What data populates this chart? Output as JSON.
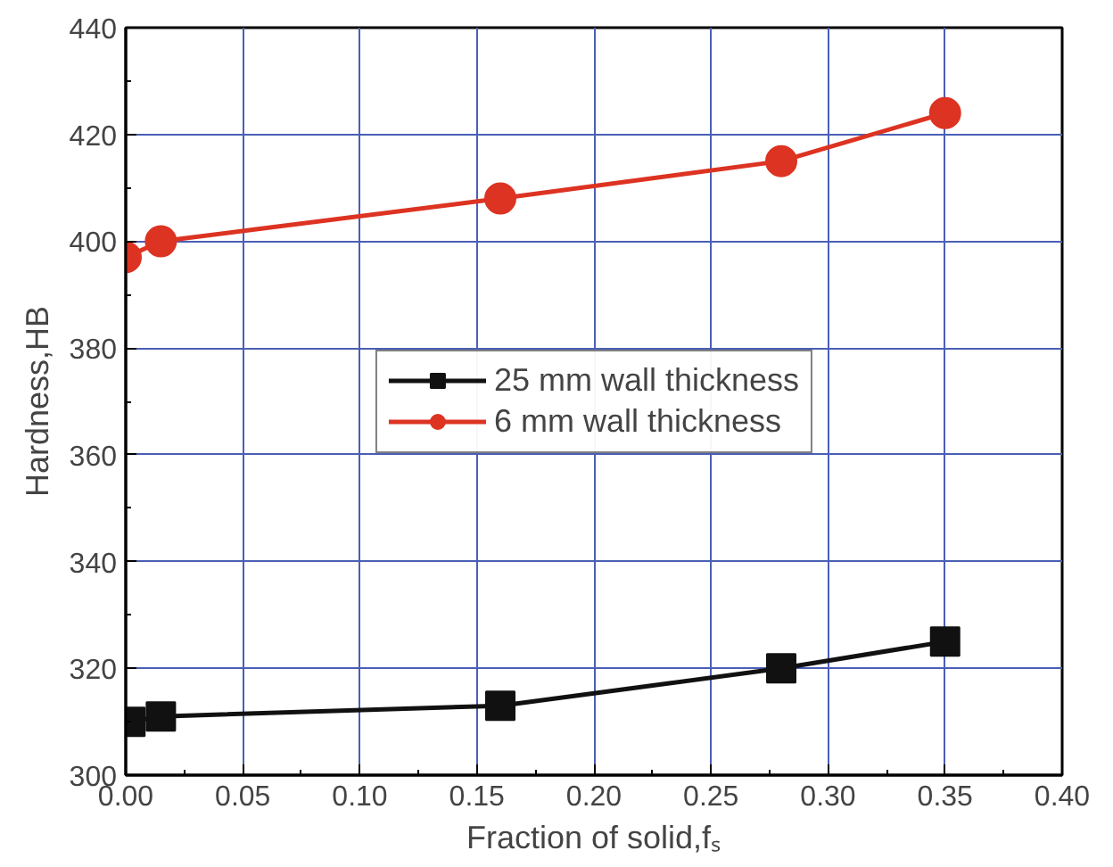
{
  "chart_data": {
    "type": "line",
    "xlabel": "Fraction of solid,fₛ",
    "ylabel": "Hardness,HB",
    "xlim": [
      0.0,
      0.4
    ],
    "xticks": [
      {
        "value": 0,
        "label": "0.00"
      },
      {
        "value": 0.05,
        "label": "0.05"
      },
      {
        "value": 0.1,
        "label": "0.10"
      },
      {
        "value": 0.15,
        "label": "0.15"
      },
      {
        "value": 0.2,
        "label": "0.20"
      },
      {
        "value": 0.25,
        "label": "0.25"
      },
      {
        "value": 0.3,
        "label": "0.30"
      },
      {
        "value": 0.35,
        "label": "0.35"
      },
      {
        "value": 0.4,
        "label": "0.40"
      }
    ],
    "ylim": [
      300,
      440
    ],
    "yticks": [
      300,
      320,
      340,
      360,
      380,
      400,
      420,
      440
    ],
    "grid": true,
    "legend": "center",
    "line_style": "solid",
    "series": [
      {
        "name": "25 mm wall thickness",
        "color": "#111111",
        "marker": "square",
        "x": [
          0.002,
          0.015,
          0.16,
          0.28,
          0.35
        ],
        "values": [
          310,
          311,
          313,
          320,
          325
        ]
      },
      {
        "name": "6 mm wall thickness",
        "color": "#dd3322",
        "marker": "circle",
        "x": [
          0.0,
          0.015,
          0.16,
          0.28,
          0.35
        ],
        "values": [
          397,
          400,
          408,
          415,
          424
        ]
      }
    ]
  }
}
